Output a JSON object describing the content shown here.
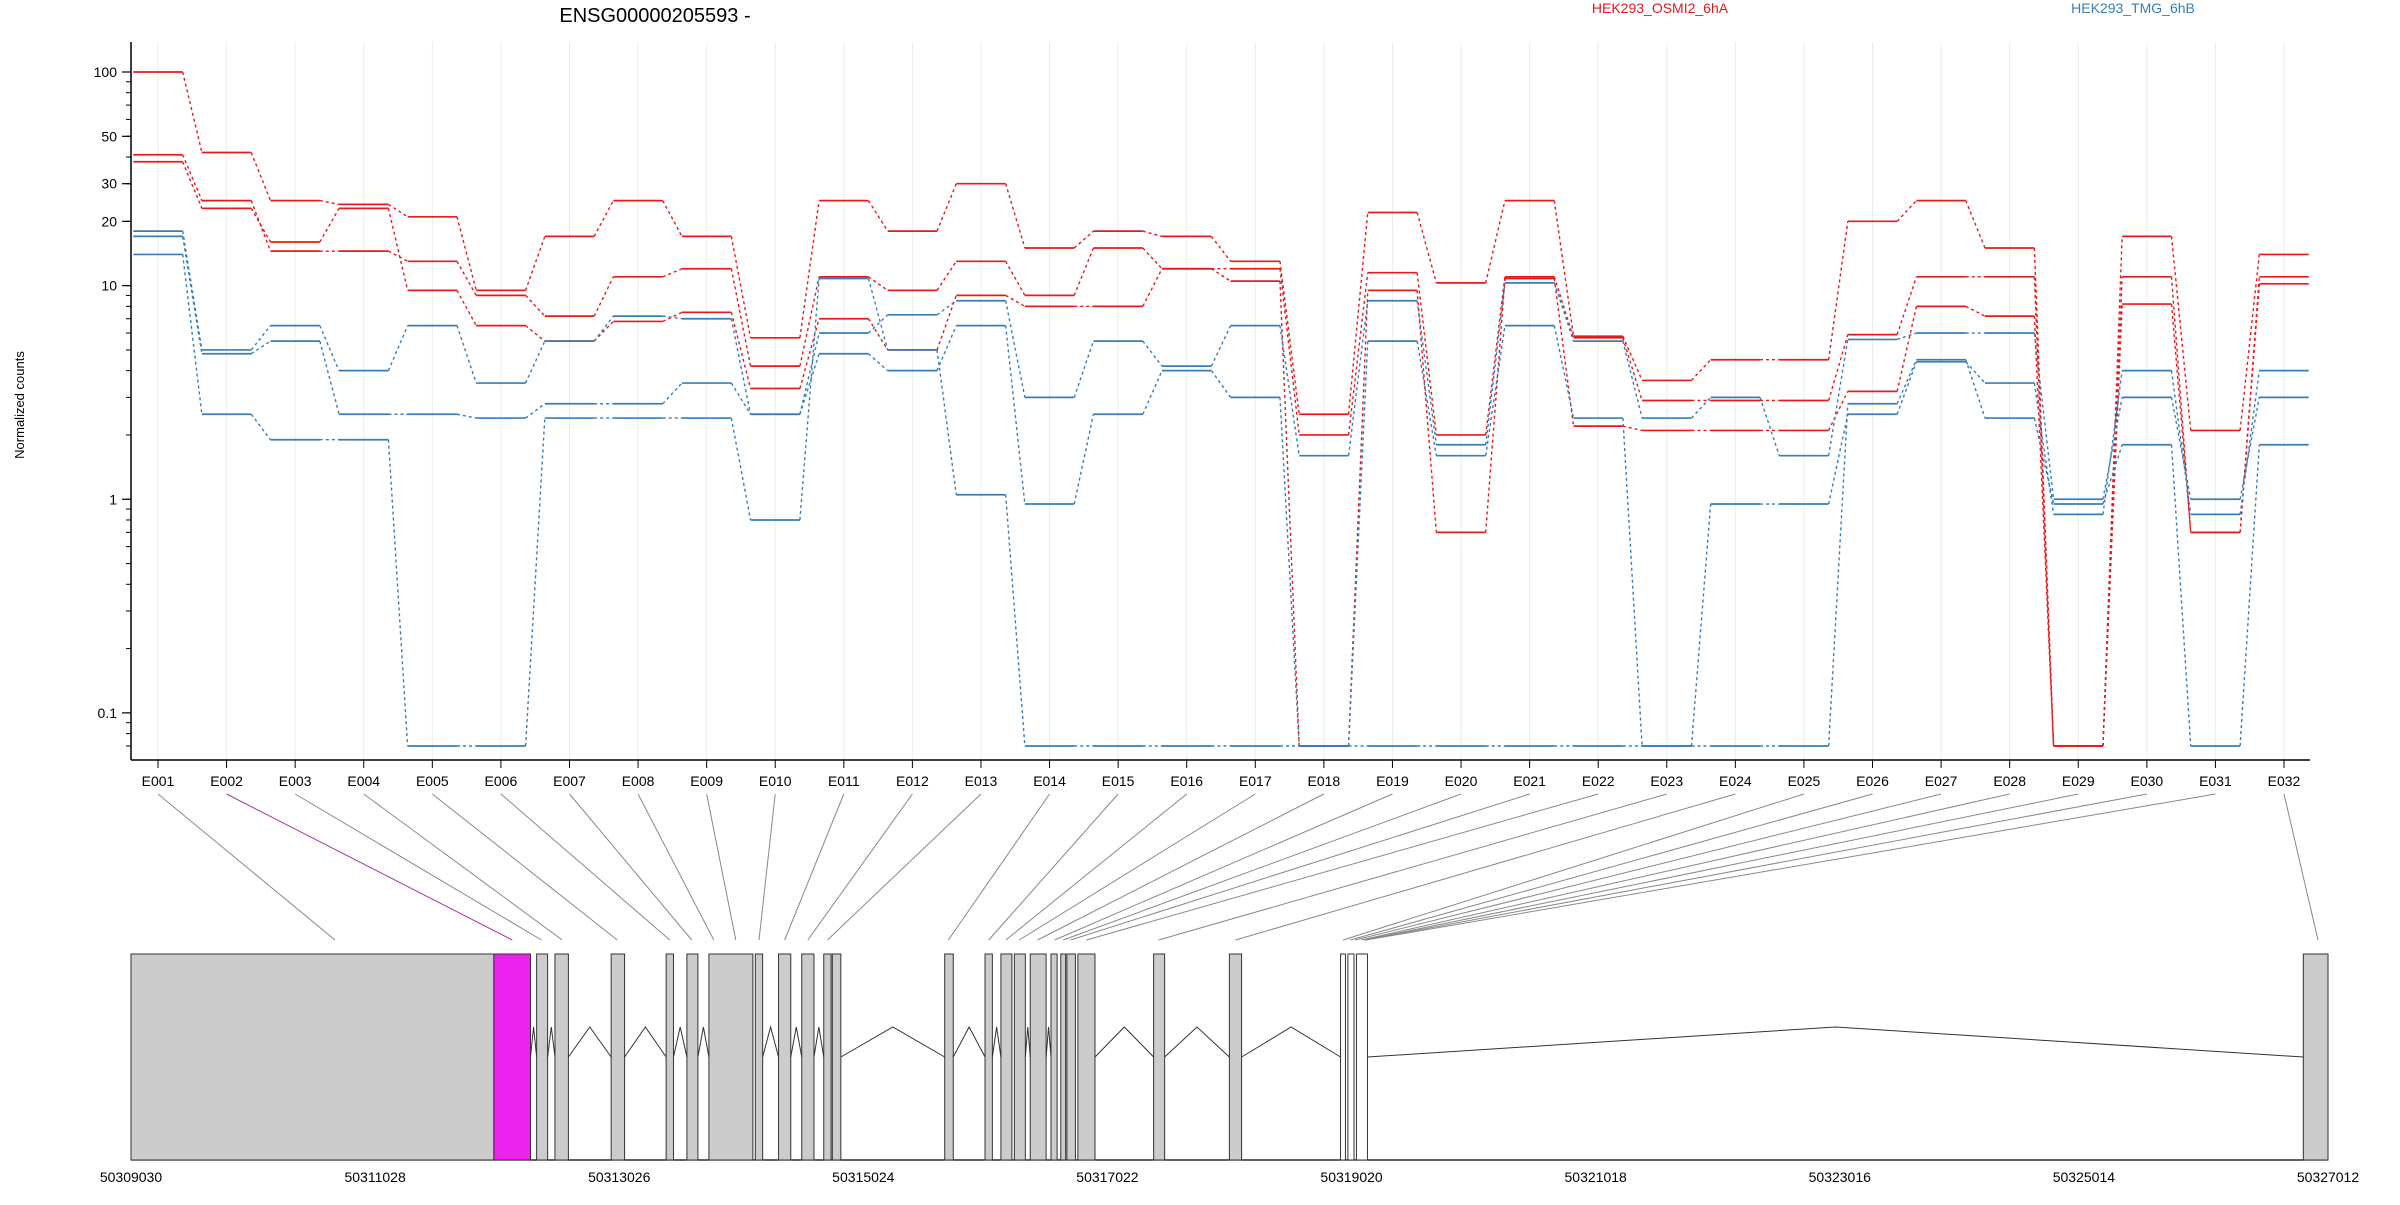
{
  "chart_data": {
    "type": "line",
    "title": "ENSG00000205593 -",
    "ylabel": "Normalized counts",
    "y_scale": "log",
    "ylim": [
      0.07,
      100
    ],
    "yticks": [
      0.1,
      1,
      10,
      20,
      30,
      50,
      100
    ],
    "ytick_labels": [
      "0.1",
      "1",
      "10",
      "20",
      "30",
      "50",
      "100"
    ],
    "categories": [
      "E001",
      "E002",
      "E003",
      "E004",
      "E005",
      "E006",
      "E007",
      "E008",
      "E009",
      "E010",
      "E011",
      "E012",
      "E013",
      "E014",
      "E015",
      "E016",
      "E017",
      "E018",
      "E019",
      "E020",
      "E021",
      "E022",
      "E023",
      "E024",
      "E025",
      "E026",
      "E027",
      "E028",
      "E029",
      "E030",
      "E031",
      "E032"
    ],
    "groups": [
      {
        "name": "HEK293_OSMI2_6hA",
        "color": "#e41a1c"
      },
      {
        "name": "HEK293_TMG_6hB",
        "color": "#377eb8"
      }
    ],
    "series": [
      {
        "group": 0,
        "values": [
          100,
          42,
          25,
          24,
          21,
          9.5,
          17,
          25,
          17,
          5.7,
          25,
          18,
          30,
          15,
          18,
          17,
          13,
          2.5,
          22,
          10.3,
          25,
          5.8,
          3.6,
          4.5,
          4.5,
          20,
          25,
          15,
          0.07,
          17,
          2.1,
          14
        ]
      },
      {
        "group": 0,
        "values": [
          41,
          25,
          14.5,
          14.5,
          13,
          9,
          7.2,
          11,
          12,
          4.2,
          11,
          9.5,
          13,
          9,
          15,
          12,
          12,
          2,
          11.5,
          2,
          11,
          5.7,
          2.9,
          2.9,
          2.9,
          5.9,
          11,
          11,
          0.07,
          11,
          0.7,
          11
        ]
      },
      {
        "group": 0,
        "values": [
          38,
          23,
          16,
          23,
          9.5,
          6.5,
          5.5,
          6.8,
          7.5,
          3.3,
          7,
          5,
          9,
          8,
          8,
          12,
          10.5,
          0.07,
          9.5,
          0.7,
          10.8,
          2.2,
          2.1,
          2.1,
          2.1,
          3.2,
          8,
          7.2,
          0.07,
          8.2,
          0.7,
          10.2
        ]
      }
    ],
    "series_b": [
      {
        "group": 1,
        "values": [
          18,
          5,
          6.5,
          4,
          6.5,
          3.5,
          5.5,
          7.2,
          7,
          2.5,
          6,
          7.3,
          8.5,
          3,
          5.5,
          4.2,
          6.5,
          1.6,
          8.5,
          1.8,
          10.3,
          5.5,
          2.4,
          3,
          1.6,
          5.6,
          6,
          6,
          1,
          3,
          1,
          3
        ]
      },
      {
        "group": 1,
        "values": [
          17,
          4.8,
          5.5,
          2.5,
          2.5,
          2.4,
          2.8,
          2.8,
          3.5,
          2.5,
          4.8,
          4,
          6.5,
          0.95,
          2.5,
          4,
          3,
          0.07,
          5.5,
          1.6,
          6.5,
          2.4,
          0.07,
          0.95,
          0.95,
          2.5,
          4.4,
          3.5,
          0.85,
          4,
          0.85,
          4
        ]
      },
      {
        "group": 1,
        "values": [
          14,
          2.5,
          1.9,
          1.9,
          0.07,
          0.07,
          2.4,
          2.4,
          2.4,
          0.8,
          10.8,
          5,
          1.05,
          0.07,
          0.07,
          0.07,
          0.07,
          0.07,
          0.07,
          0.07,
          0.07,
          0.07,
          0.07,
          0.07,
          0.07,
          2.8,
          4.5,
          2.4,
          0.95,
          1.8,
          0.07,
          1.8
        ]
      }
    ],
    "gene_model": {
      "axis_labels": [
        "50309030",
        "50311028",
        "50313026",
        "50315024",
        "50317022",
        "50319020",
        "50321018",
        "50323016",
        "50325014",
        "50327012"
      ],
      "axis_start": 50309030,
      "axis_end": 50327012,
      "highlight_color": "#ee22ee",
      "highlight_exon": "E002"
    }
  }
}
